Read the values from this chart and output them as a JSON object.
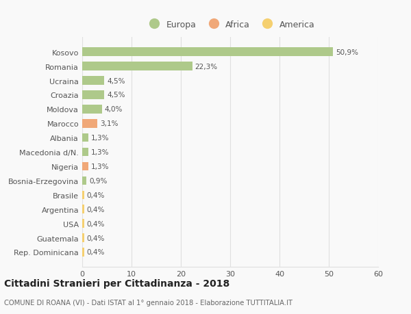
{
  "categories": [
    "Kosovo",
    "Romania",
    "Ucraina",
    "Croazia",
    "Moldova",
    "Marocco",
    "Albania",
    "Macedonia d/N.",
    "Nigeria",
    "Bosnia-Erzegovina",
    "Brasile",
    "Argentina",
    "USA",
    "Guatemala",
    "Rep. Dominicana"
  ],
  "values": [
    50.9,
    22.3,
    4.5,
    4.5,
    4.0,
    3.1,
    1.3,
    1.3,
    1.3,
    0.9,
    0.4,
    0.4,
    0.4,
    0.4,
    0.4
  ],
  "labels": [
    "50,9%",
    "22,3%",
    "4,5%",
    "4,5%",
    "4,0%",
    "3,1%",
    "1,3%",
    "1,3%",
    "1,3%",
    "0,9%",
    "0,4%",
    "0,4%",
    "0,4%",
    "0,4%",
    "0,4%"
  ],
  "colors": [
    "#aec98a",
    "#aec98a",
    "#aec98a",
    "#aec98a",
    "#aec98a",
    "#f0a878",
    "#aec98a",
    "#aec98a",
    "#f0a878",
    "#aec98a",
    "#f5d070",
    "#f5d070",
    "#f5d070",
    "#f5d070",
    "#f5d070"
  ],
  "legend_labels": [
    "Europa",
    "Africa",
    "America"
  ],
  "legend_colors": [
    "#aec98a",
    "#f0a878",
    "#f5d070"
  ],
  "title": "Cittadini Stranieri per Cittadinanza - 2018",
  "subtitle": "COMUNE DI ROANA (VI) - Dati ISTAT al 1° gennaio 2018 - Elaborazione TUTTITALIA.IT",
  "xlim": [
    0,
    60
  ],
  "xticks": [
    0,
    10,
    20,
    30,
    40,
    50,
    60
  ],
  "background_color": "#f9f9f9",
  "grid_color": "#e0e0e0"
}
